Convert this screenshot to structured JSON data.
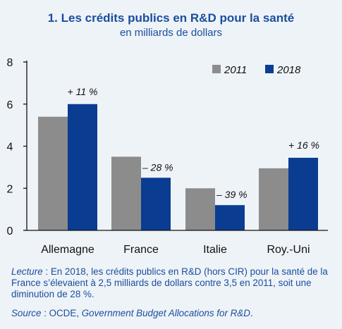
{
  "header": {
    "title": "1. Les crédits publics en R&D pour la santé",
    "subtitle": "en milliards de dollars"
  },
  "chart_data": {
    "type": "bar",
    "categories": [
      "Allemagne",
      "France",
      "Italie",
      "Roy.-Uni"
    ],
    "series": [
      {
        "name": "2011",
        "values": [
          5.4,
          3.5,
          2.0,
          2.95
        ],
        "color": "#8c8c8c"
      },
      {
        "name": "2018",
        "values": [
          6.0,
          2.5,
          1.2,
          3.45
        ],
        "color": "#0a3d91"
      }
    ],
    "annotations": [
      "+ 11 %",
      "– 28 %",
      "– 39 %",
      "+ 16 %"
    ],
    "yticks": [
      "0",
      "2",
      "4",
      "6",
      "8"
    ],
    "ylim": [
      0,
      8
    ],
    "grid": false,
    "legend": "top-right"
  },
  "footer": {
    "note_lead": "Lecture",
    "note_text": " : En 2018, les crédits publics en R&D (hors CIR) pour la santé de la France s’élevaient à 2,5 milliards de dollars contre 3,5 en 2011, soit une diminution de 28 %.",
    "source_lead": "Source",
    "source_org": " : OCDE, ",
    "source_pub": "Government Budget Allocations for R&D",
    "source_end": "."
  }
}
